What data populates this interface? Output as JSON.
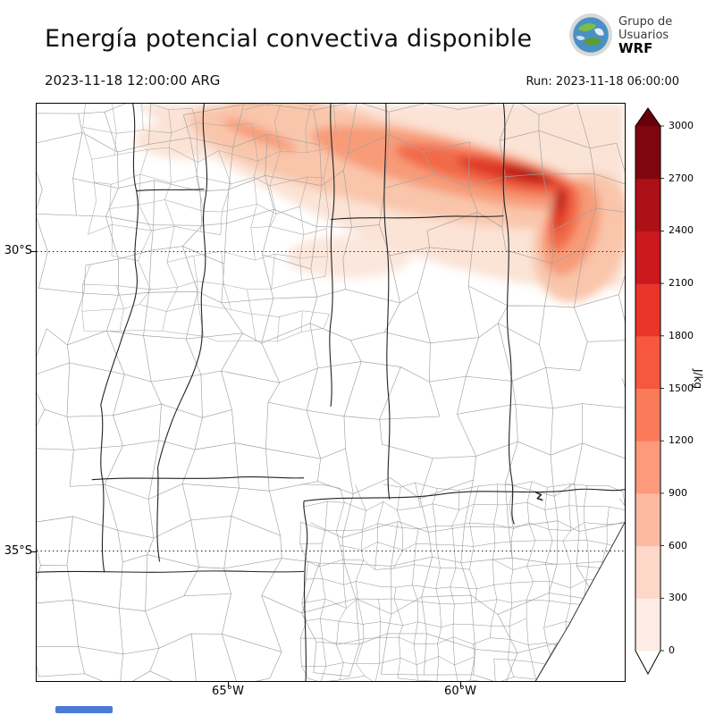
{
  "header": {
    "title": "Energía potencial convectiva disponible",
    "logo": {
      "line1": "Grupo de",
      "line2": "Usuarios",
      "line3": "WRF"
    },
    "valid_time": "2023-11-18 12:00:00 ARG",
    "run_time": "Run: 2023-11-18 06:00:00"
  },
  "map": {
    "lat_labels": [
      {
        "text": "30°S"
      },
      {
        "text": "35°S"
      }
    ],
    "lon_labels": [
      {
        "text": "65°W"
      },
      {
        "text": "60°W"
      }
    ]
  },
  "colorbar": {
    "unit": "J/kg",
    "ticks": [
      0,
      300,
      600,
      900,
      1200,
      1500,
      1800,
      2100,
      2400,
      2700,
      3000
    ],
    "segment_colors": [
      "#feece4",
      "#fdd8c8",
      "#fcbba1",
      "#fc9a7b",
      "#fb7a5a",
      "#f6573e",
      "#e83429",
      "#cb181d",
      "#ad1117",
      "#800610"
    ],
    "over_color": "#67000d",
    "under_color": "#ffffff"
  },
  "chart_data": {
    "type": "heatmap",
    "title": "Energía potencial convectiva disponible",
    "variable": "CAPE (convective available potential energy)",
    "valid_time": "2023-11-18 12:00:00 ARG",
    "run_time": "2023-11-18 06:00:00",
    "units": "J/kg",
    "levels": [
      0,
      300,
      600,
      900,
      1200,
      1500,
      1800,
      2100,
      2400,
      2700,
      3000
    ],
    "palette": "Reds",
    "colorbar_extend": "both",
    "x_axis": {
      "ticks": [
        "65°W",
        "60°W"
      ]
    },
    "y_axis": {
      "ticks": [
        "30°S",
        "35°S"
      ]
    },
    "region": "central-northern Argentina with province and department boundaries",
    "features": [
      {
        "region": "elongated NW-SE band north of 30°S between ~63°W and 58°W",
        "value_range": [
          600,
          1800
        ]
      },
      {
        "region": "local maximum near 28.5°S 59.5°W extending south along ~59°W",
        "value_range": [
          1800,
          2400
        ]
      },
      {
        "region": "broad light shading along northern edge of domain",
        "value_range": [
          0,
          600
        ]
      },
      {
        "region": "central and southern domain",
        "value_range": [
          0,
          0
        ]
      }
    ]
  }
}
